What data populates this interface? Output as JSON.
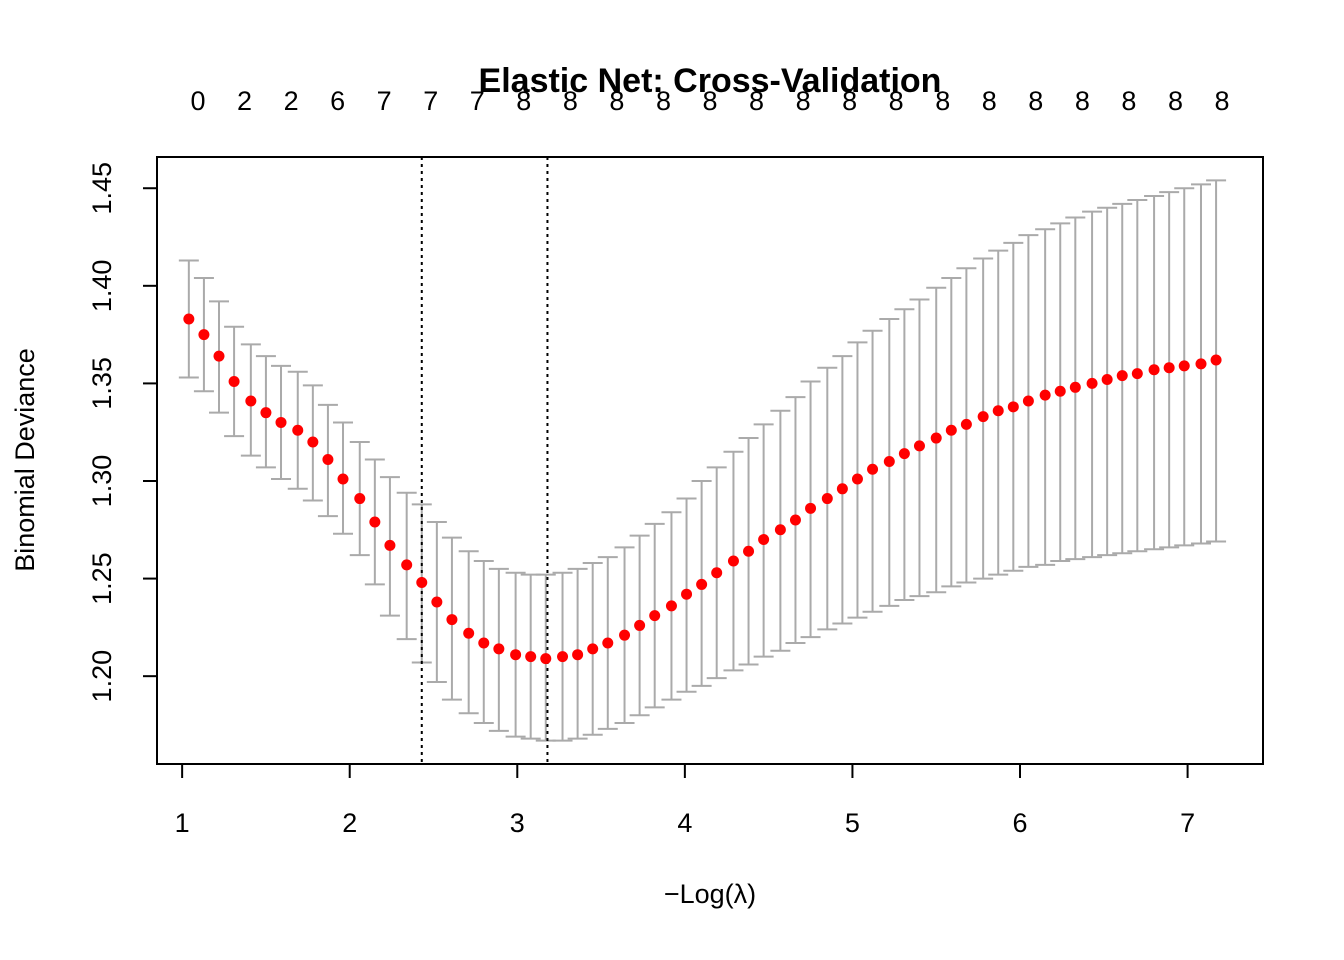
{
  "chart_data": {
    "type": "scatter",
    "title": "Elastic Net: Cross-Validation",
    "xlabel": "−Log(λ)",
    "ylabel": "Binomial Deviance",
    "xlim": [
      0.85,
      7.45
    ],
    "ylim": [
      1.155,
      1.466
    ],
    "x_ticks": [
      1,
      2,
      3,
      4,
      5,
      6,
      7
    ],
    "y_ticks": [
      1.2,
      1.25,
      1.3,
      1.35,
      1.4,
      1.45
    ],
    "x_tick_labels": [
      "1",
      "2",
      "3",
      "4",
      "5",
      "6",
      "7"
    ],
    "y_tick_labels": [
      "1.20",
      "1.25",
      "1.30",
      "1.35",
      "1.40",
      "1.45"
    ],
    "top_axis_labels": [
      "0",
      "2",
      "2",
      "6",
      "7",
      "7",
      "7",
      "8",
      "8",
      "8",
      "8",
      "8",
      "8",
      "8",
      "8",
      "8",
      "8",
      "8",
      "8",
      "8",
      "8",
      "8",
      "8"
    ],
    "vertical_lines": [
      2.43,
      3.18
    ],
    "point_color": "#ff0000",
    "errorbar_color": "#aaaaaa",
    "series": [
      {
        "x": [
          1.04,
          1.13,
          1.22,
          1.31,
          1.41,
          1.5,
          1.59,
          1.69,
          1.78,
          1.87,
          1.96,
          2.06,
          2.15,
          2.24,
          2.34,
          2.43,
          2.52,
          2.61,
          2.71,
          2.8,
          2.89,
          2.99,
          3.08,
          3.17,
          3.27,
          3.36,
          3.45,
          3.54,
          3.64,
          3.73,
          3.82,
          3.92,
          4.01,
          4.1,
          4.19,
          4.29,
          4.38,
          4.47,
          4.57,
          4.66,
          4.75,
          4.85,
          4.94,
          5.03,
          5.12,
          5.22,
          5.31,
          5.4,
          5.5,
          5.59,
          5.68,
          5.78,
          5.87,
          5.96,
          6.05,
          6.15,
          6.24,
          6.33,
          6.43,
          6.52,
          6.61,
          6.7,
          6.8,
          6.89,
          6.98,
          7.08,
          7.17
        ],
        "y": [
          1.383,
          1.375,
          1.364,
          1.351,
          1.341,
          1.335,
          1.33,
          1.326,
          1.32,
          1.311,
          1.301,
          1.291,
          1.279,
          1.267,
          1.257,
          1.248,
          1.238,
          1.229,
          1.222,
          1.217,
          1.214,
          1.211,
          1.21,
          1.209,
          1.21,
          1.211,
          1.214,
          1.217,
          1.221,
          1.226,
          1.231,
          1.236,
          1.242,
          1.247,
          1.253,
          1.259,
          1.264,
          1.27,
          1.275,
          1.28,
          1.286,
          1.291,
          1.296,
          1.301,
          1.306,
          1.31,
          1.314,
          1.318,
          1.322,
          1.326,
          1.329,
          1.333,
          1.336,
          1.338,
          1.341,
          1.344,
          1.346,
          1.348,
          1.35,
          1.352,
          1.354,
          1.355,
          1.357,
          1.358,
          1.359,
          1.36,
          1.362
        ],
        "lower": [
          1.353,
          1.346,
          1.335,
          1.323,
          1.313,
          1.307,
          1.301,
          1.296,
          1.29,
          1.282,
          1.273,
          1.262,
          1.247,
          1.231,
          1.219,
          1.207,
          1.197,
          1.188,
          1.181,
          1.176,
          1.172,
          1.169,
          1.168,
          1.167,
          1.167,
          1.168,
          1.17,
          1.173,
          1.176,
          1.18,
          1.184,
          1.188,
          1.192,
          1.195,
          1.199,
          1.203,
          1.206,
          1.21,
          1.213,
          1.217,
          1.22,
          1.224,
          1.227,
          1.23,
          1.233,
          1.236,
          1.239,
          1.241,
          1.243,
          1.246,
          1.248,
          1.25,
          1.252,
          1.254,
          1.256,
          1.257,
          1.259,
          1.26,
          1.261,
          1.262,
          1.263,
          1.264,
          1.265,
          1.266,
          1.267,
          1.268,
          1.269
        ],
        "upper": [
          1.413,
          1.404,
          1.392,
          1.379,
          1.37,
          1.364,
          1.359,
          1.356,
          1.349,
          1.339,
          1.33,
          1.32,
          1.311,
          1.302,
          1.294,
          1.288,
          1.279,
          1.271,
          1.264,
          1.259,
          1.255,
          1.253,
          1.252,
          1.252,
          1.253,
          1.255,
          1.258,
          1.261,
          1.266,
          1.272,
          1.278,
          1.284,
          1.291,
          1.3,
          1.307,
          1.315,
          1.322,
          1.329,
          1.336,
          1.343,
          1.351,
          1.358,
          1.364,
          1.371,
          1.377,
          1.383,
          1.388,
          1.393,
          1.399,
          1.404,
          1.409,
          1.414,
          1.418,
          1.422,
          1.426,
          1.429,
          1.432,
          1.435,
          1.438,
          1.44,
          1.442,
          1.444,
          1.446,
          1.448,
          1.45,
          1.452,
          1.454
        ]
      }
    ]
  }
}
